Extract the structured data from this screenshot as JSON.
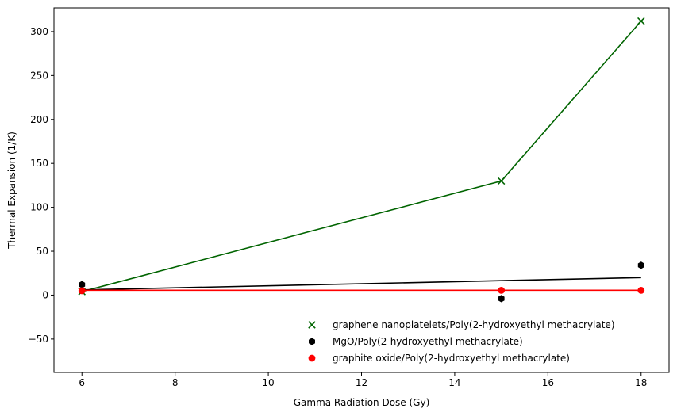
{
  "chart_data": {
    "type": "scatter",
    "title": "",
    "xlabel": "Gamma Radiation Dose (Gy)",
    "ylabel": "Thermal Expansion (1/K)",
    "xlim": [
      5.4,
      18.6
    ],
    "ylim": [
      -88,
      327
    ],
    "xticks": [
      6,
      8,
      10,
      12,
      14,
      16,
      18
    ],
    "yticks": [
      -50,
      0,
      50,
      100,
      150,
      200,
      250,
      300
    ],
    "grid": false,
    "legend_position": "lower-right",
    "series": [
      {
        "name": "graphene nanoplatelets/Poly(2-hydroxyethyl methacrylate)",
        "marker": "x",
        "color": "#006400",
        "points": [
          [
            6,
            4
          ],
          [
            15,
            130
          ],
          [
            18,
            312
          ]
        ],
        "line": [
          [
            6,
            4
          ],
          [
            15,
            130
          ],
          [
            18,
            312
          ]
        ]
      },
      {
        "name": "MgO/Poly(2-hydroxyethyl methacrylate)",
        "marker": "hexagon",
        "color": "#000000",
        "points": [
          [
            6,
            12
          ],
          [
            15,
            -4
          ],
          [
            18,
            34
          ]
        ],
        "line": [
          [
            6,
            6
          ],
          [
            18,
            20
          ]
        ]
      },
      {
        "name": "graphite oxide/Poly(2-hydroxyethyl methacrylate)",
        "marker": "circle",
        "color": "#ff0000",
        "points": [
          [
            6,
            5
          ],
          [
            15,
            5.5
          ],
          [
            18,
            5.5
          ]
        ],
        "line": [
          [
            6,
            5.5
          ],
          [
            18,
            5.5
          ]
        ]
      }
    ]
  }
}
